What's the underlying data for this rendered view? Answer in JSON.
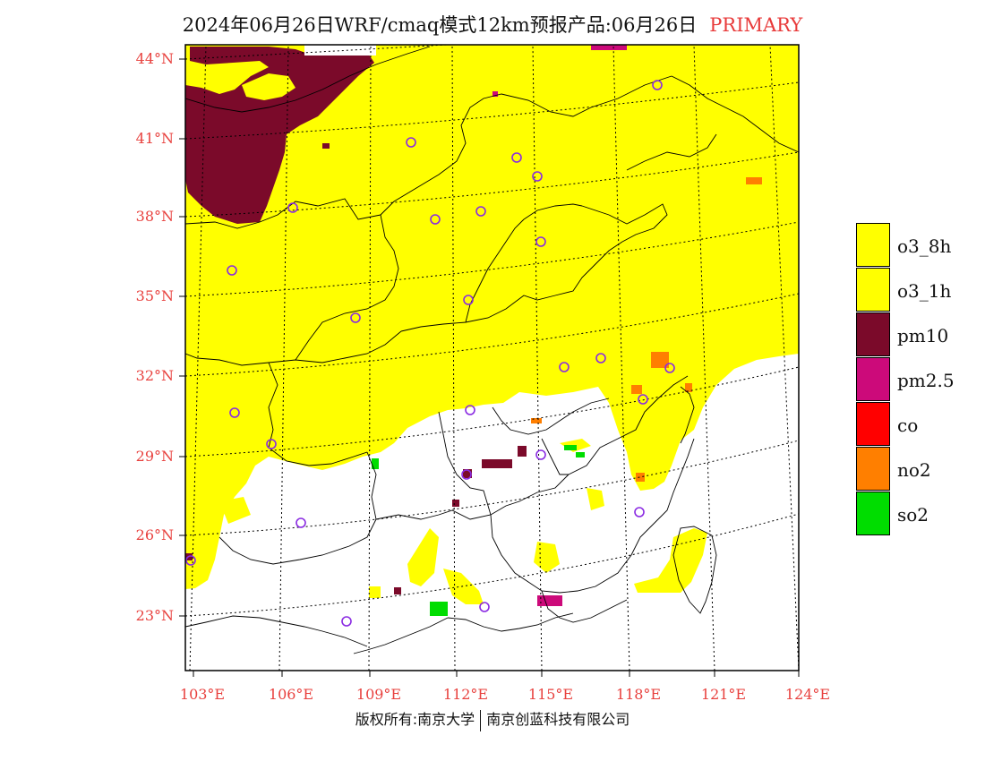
{
  "title": {
    "text": "2024年06月26日WRF/cmaq模式12km预报产品:06月26日",
    "tag": "PRIMARY"
  },
  "map": {
    "lat_labels": [
      "44°N",
      "41°N",
      "38°N",
      "35°N",
      "32°N",
      "29°N",
      "26°N",
      "23°N"
    ],
    "lon_labels": [
      "103°E",
      "106°E",
      "109°E",
      "112°E",
      "115°E",
      "118°E",
      "121°E",
      "124°E"
    ],
    "label_color": "#e8413e"
  },
  "legend": {
    "items": [
      {
        "label": "o3_8h",
        "color": "#ffff00"
      },
      {
        "label": "o3_1h",
        "color": "#ffff00"
      },
      {
        "label": "pm10",
        "color": "#7b0a2a"
      },
      {
        "label": "pm2.5",
        "color": "#cc0a7a"
      },
      {
        "label": "co",
        "color": "#ff0000"
      },
      {
        "label": "no2",
        "color": "#ff7f00"
      },
      {
        "label": "so2",
        "color": "#00dd00"
      }
    ]
  },
  "footer": {
    "left": "版权所有:南京大学",
    "right": "南京创蓝科技有限公司"
  },
  "colors": {
    "ozone": "#ffff00",
    "pm10": "#7b0a2a",
    "pm25": "#cc0a7a",
    "no2": "#ff7f00",
    "so2": "#00dd00",
    "station": "#8a2be2"
  }
}
